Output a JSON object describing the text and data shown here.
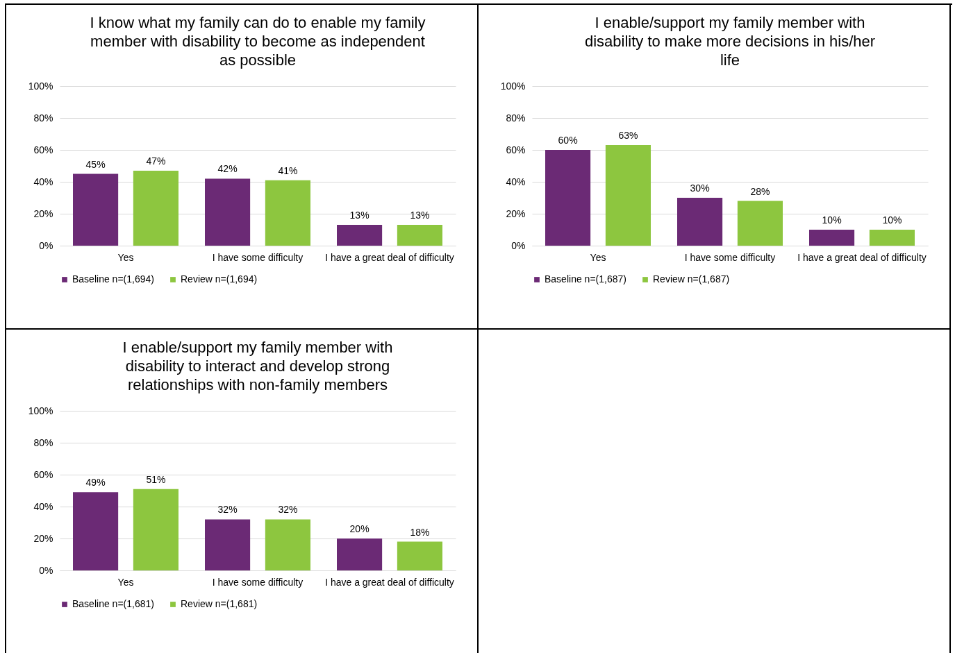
{
  "chart_data": [
    {
      "type": "bar",
      "title": "I know what my family can do to enable my family member with disability to become as independent as possible",
      "categories": [
        "Yes",
        "I have some difficulty",
        "I have a great deal of difficulty"
      ],
      "series": [
        {
          "name": "Baseline n=(1,694)",
          "color": "#6b2a75",
          "values": [
            45,
            42,
            13
          ],
          "value_labels": [
            "45%",
            "42%",
            "13%"
          ]
        },
        {
          "name": "Review n=(1,694)",
          "color": "#8dc63f",
          "values": [
            47,
            41,
            13
          ],
          "value_labels": [
            "47%",
            "41%",
            "13%"
          ]
        }
      ],
      "ylim": [
        0,
        100
      ],
      "yticks": [
        {
          "value": 0,
          "label": "0%"
        },
        {
          "value": 20,
          "label": "20%"
        },
        {
          "value": 40,
          "label": "40%"
        },
        {
          "value": 60,
          "label": "60%"
        },
        {
          "value": 80,
          "label": "80%"
        },
        {
          "value": 100,
          "label": "100%"
        }
      ],
      "grid": "y",
      "legend": "bottom"
    },
    {
      "type": "bar",
      "title": "I enable/support my family member with disability to make more decisions in his/her life",
      "categories": [
        "Yes",
        "I have some difficulty",
        "I have a great deal of difficulty"
      ],
      "series": [
        {
          "name": "Baseline n=(1,687)",
          "color": "#6b2a75",
          "values": [
            60,
            30,
            10
          ],
          "value_labels": [
            "60%",
            "30%",
            "10%"
          ]
        },
        {
          "name": "Review n=(1,687)",
          "color": "#8dc63f",
          "values": [
            63,
            28,
            10
          ],
          "value_labels": [
            "63%",
            "28%",
            "10%"
          ]
        }
      ],
      "ylim": [
        0,
        100
      ],
      "yticks": [
        {
          "value": 0,
          "label": "0%"
        },
        {
          "value": 20,
          "label": "20%"
        },
        {
          "value": 40,
          "label": "40%"
        },
        {
          "value": 60,
          "label": "60%"
        },
        {
          "value": 80,
          "label": "80%"
        },
        {
          "value": 100,
          "label": "100%"
        }
      ],
      "grid": "y",
      "legend": "bottom"
    },
    {
      "type": "bar",
      "title": "I enable/support my family member with disability to interact and develop strong relationships with non-family members",
      "categories": [
        "Yes",
        "I have some difficulty",
        "I have a great deal of difficulty"
      ],
      "series": [
        {
          "name": "Baseline n=(1,681)",
          "color": "#6b2a75",
          "values": [
            49,
            32,
            20
          ],
          "value_labels": [
            "49%",
            "32%",
            "20%"
          ]
        },
        {
          "name": "Review n=(1,681)",
          "color": "#8dc63f",
          "values": [
            51,
            32,
            18
          ],
          "value_labels": [
            "51%",
            "32%",
            "18%"
          ]
        }
      ],
      "ylim": [
        0,
        100
      ],
      "yticks": [
        {
          "value": 0,
          "label": "0%"
        },
        {
          "value": 20,
          "label": "20%"
        },
        {
          "value": 40,
          "label": "40%"
        },
        {
          "value": 60,
          "label": "60%"
        },
        {
          "value": 80,
          "label": "80%"
        },
        {
          "value": 100,
          "label": "100%"
        }
      ],
      "grid": "y",
      "legend": "bottom"
    }
  ]
}
